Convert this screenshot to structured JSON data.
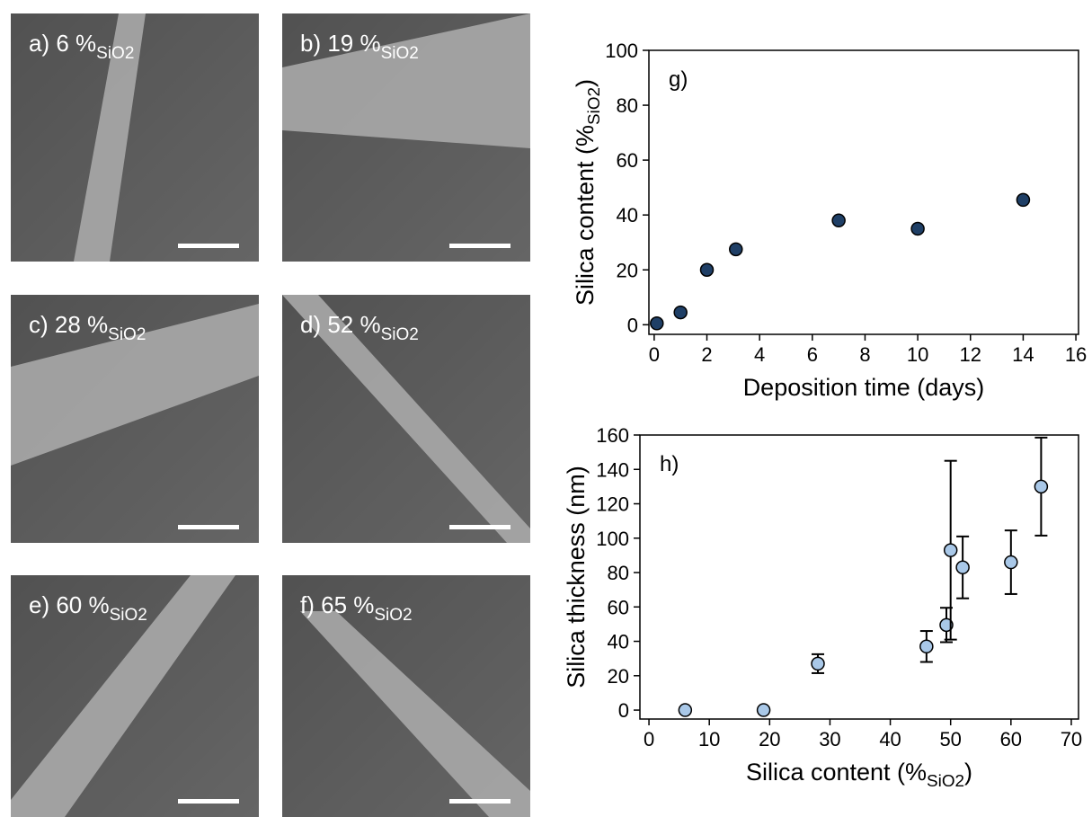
{
  "panels": [
    {
      "label": "a) 6 %",
      "subscript": "SiO2"
    },
    {
      "label": "b) 19 %",
      "subscript": "SiO2"
    },
    {
      "label": "c) 28 %",
      "subscript": "SiO2"
    },
    {
      "label": "d) 52 %",
      "subscript": "SiO2"
    },
    {
      "label": "e) 60 %",
      "subscript": "SiO2"
    },
    {
      "label": "f) 65 %",
      "subscript": "SiO2"
    }
  ],
  "chart_data": [
    {
      "type": "scatter",
      "annotation": "g)",
      "xlabel": [
        "Deposition time (days)"
      ],
      "ylabel": [
        "Silica content (%",
        "SiO2",
        ")"
      ],
      "x": [
        0.1,
        1,
        2,
        3.1,
        7,
        10,
        14
      ],
      "values": [
        0.5,
        4.5,
        20,
        27.5,
        38,
        35,
        45.5
      ],
      "color": "#1f3f66",
      "xlim": [
        -0.2,
        16.1
      ],
      "ylim": [
        -3.5,
        100
      ],
      "xticks": [
        0,
        2,
        4,
        6,
        8,
        10,
        12,
        14,
        16
      ],
      "yticks": [
        0,
        20,
        40,
        60,
        80,
        100
      ]
    },
    {
      "type": "scatter",
      "annotation": "h)",
      "xlabel": [
        "Silica content (%",
        "SiO2",
        ")"
      ],
      "ylabel": [
        "Silica thickness (nm)"
      ],
      "x": [
        6,
        19,
        28,
        46,
        49.3,
        50,
        52,
        60,
        65
      ],
      "values": [
        0,
        0,
        27,
        37,
        49.5,
        93,
        83,
        86,
        130
      ],
      "errors": [
        null,
        null,
        5.5,
        9,
        10,
        52,
        18,
        18.5,
        28.5
      ],
      "color": "#a9c8e8",
      "xlim": [
        -1.5,
        71.2
      ],
      "ylim": [
        -5.2,
        160
      ],
      "xticks": [
        0,
        10,
        20,
        30,
        40,
        50,
        60,
        70
      ],
      "yticks": [
        0,
        20,
        40,
        60,
        80,
        100,
        120,
        140,
        160
      ]
    }
  ]
}
